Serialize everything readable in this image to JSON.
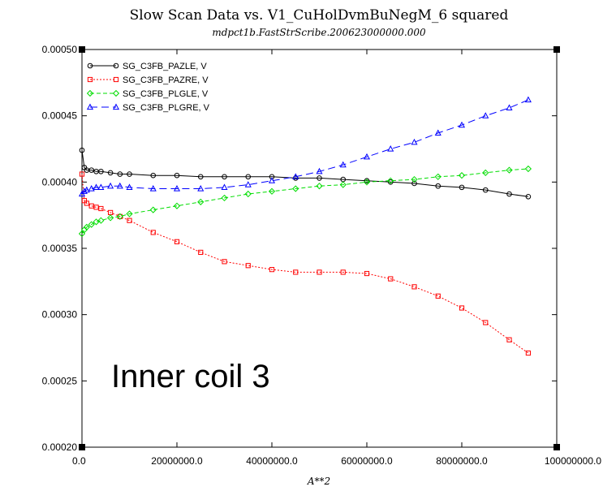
{
  "chart_data": {
    "type": "line",
    "title": "Slow Scan Data vs. V1_CuHolDvmBuNegM_6 squared",
    "subtitle": "mdpct1b.FastStrScribe.200623000000.000",
    "xlabel": "A**2",
    "ylabel": "",
    "xlim": [
      0,
      100000000
    ],
    "ylim": [
      0.0002,
      0.0005
    ],
    "x_ticks": [
      0,
      20000000,
      40000000,
      60000000,
      80000000,
      100000000
    ],
    "x_tick_labels": [
      "0.0",
      "20000000.0",
      "40000000.0",
      "60000000.0",
      "80000000.0",
      "100000000.0"
    ],
    "y_ticks": [
      0.0002,
      0.00025,
      0.0003,
      0.00035,
      0.0004,
      0.00045,
      0.0005
    ],
    "y_tick_labels": [
      "0.00020",
      "0.00025",
      "0.00030",
      "0.00035",
      "0.00040",
      "0.00045",
      "0.00050"
    ],
    "legend_position": "top-left",
    "grid": false,
    "annotation": "Inner coil 3",
    "series": [
      {
        "name": "SG_C3FB_PAZLE, V",
        "color": "#000000",
        "marker": "circle",
        "dash": "solid",
        "x": [
          0,
          500000,
          1000000,
          2000000,
          3000000,
          4000000,
          6000000,
          8000000,
          10000000,
          15000000,
          20000000,
          25000000,
          30000000,
          35000000,
          40000000,
          45000000,
          50000000,
          55000000,
          60000000,
          65000000,
          70000000,
          75000000,
          80000000,
          85000000,
          90000000,
          94000000
        ],
        "y": [
          0.000424,
          0.000411,
          0.000409,
          0.000409,
          0.000408,
          0.000408,
          0.000407,
          0.000406,
          0.000406,
          0.000405,
          0.000405,
          0.000404,
          0.000404,
          0.000404,
          0.000404,
          0.000403,
          0.000403,
          0.000402,
          0.000401,
          0.0004,
          0.000399,
          0.000397,
          0.000396,
          0.000394,
          0.000391,
          0.000389
        ]
      },
      {
        "name": "SG_C3FB_PAZRE, V",
        "color": "#ff0000",
        "marker": "square",
        "dash": "dotted",
        "x": [
          0,
          500000,
          1000000,
          2000000,
          3000000,
          4000000,
          6000000,
          8000000,
          10000000,
          15000000,
          20000000,
          25000000,
          30000000,
          35000000,
          40000000,
          45000000,
          50000000,
          55000000,
          60000000,
          65000000,
          70000000,
          75000000,
          80000000,
          85000000,
          90000000,
          94000000
        ],
        "y": [
          0.000406,
          0.000386,
          0.000384,
          0.000382,
          0.000381,
          0.00038,
          0.000377,
          0.000374,
          0.000371,
          0.000362,
          0.000355,
          0.000347,
          0.00034,
          0.000337,
          0.000334,
          0.000332,
          0.000332,
          0.000332,
          0.000331,
          0.000327,
          0.000321,
          0.000314,
          0.000305,
          0.000294,
          0.000281,
          0.000271
        ]
      },
      {
        "name": "SG_C3FB_PLGLE, V",
        "color": "#00dd00",
        "marker": "diamond",
        "dash": "dashed",
        "x": [
          0,
          500000,
          1000000,
          2000000,
          3000000,
          4000000,
          6000000,
          8000000,
          10000000,
          15000000,
          20000000,
          25000000,
          30000000,
          35000000,
          40000000,
          45000000,
          50000000,
          55000000,
          60000000,
          65000000,
          70000000,
          75000000,
          80000000,
          85000000,
          90000000,
          94000000
        ],
        "y": [
          0.000361,
          0.000364,
          0.000366,
          0.000368,
          0.00037,
          0.000371,
          0.000373,
          0.000374,
          0.000376,
          0.000379,
          0.000382,
          0.000385,
          0.000388,
          0.000391,
          0.000393,
          0.000395,
          0.000397,
          0.000398,
          0.0004,
          0.000401,
          0.000402,
          0.000404,
          0.000405,
          0.000407,
          0.000409,
          0.00041
        ]
      },
      {
        "name": "SG_C3FB_PLGRE, V",
        "color": "#0000ff",
        "marker": "triangle",
        "dash": "longdash",
        "x": [
          0,
          500000,
          1000000,
          2000000,
          3000000,
          4000000,
          6000000,
          8000000,
          10000000,
          15000000,
          20000000,
          25000000,
          30000000,
          35000000,
          40000000,
          45000000,
          50000000,
          55000000,
          60000000,
          65000000,
          70000000,
          75000000,
          80000000,
          85000000,
          90000000,
          94000000
        ],
        "y": [
          0.000391,
          0.000393,
          0.000394,
          0.000395,
          0.000396,
          0.000396,
          0.000397,
          0.000397,
          0.000396,
          0.000395,
          0.000395,
          0.000395,
          0.000396,
          0.000398,
          0.000401,
          0.000404,
          0.000408,
          0.000413,
          0.000419,
          0.000425,
          0.00043,
          0.000437,
          0.000443,
          0.00045,
          0.000456,
          0.000462
        ]
      }
    ]
  }
}
